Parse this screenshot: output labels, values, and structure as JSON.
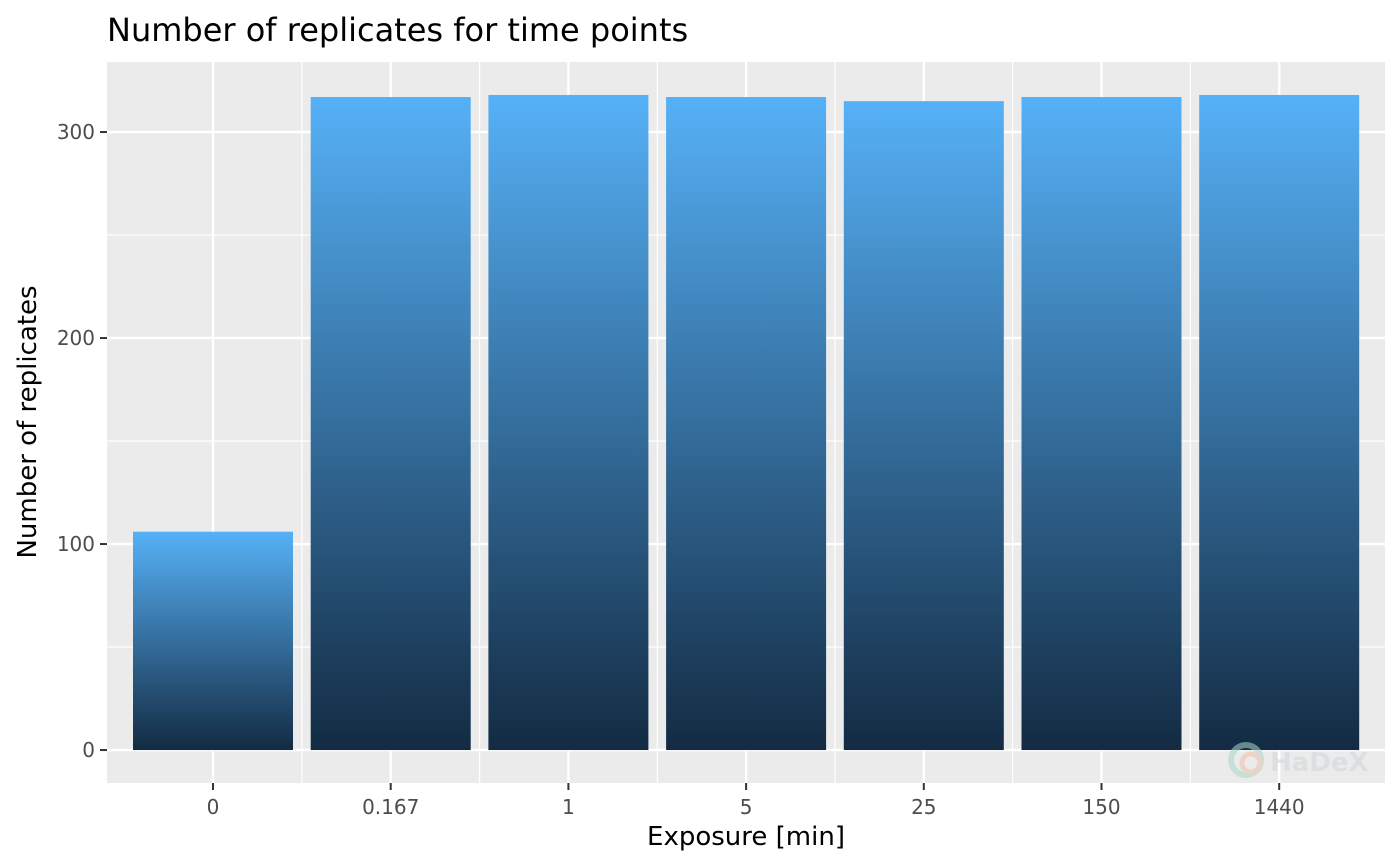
{
  "chart_data": {
    "type": "bar",
    "title": "Number of replicates for time points",
    "xlabel": "Exposure [min]",
    "ylabel": "Number of replicates",
    "categories": [
      "0",
      "0.167",
      "1",
      "5",
      "25",
      "150",
      "1440"
    ],
    "values": [
      106,
      317,
      318,
      317,
      315,
      317,
      318
    ],
    "ylim": [
      -16,
      334
    ],
    "yticks": [
      0,
      100,
      200,
      300
    ],
    "grid": true,
    "legend": "none",
    "colors": {
      "panel_background": "#ebebeb",
      "grid": "#ffffff",
      "bar_gradient_top": "#56b1f7",
      "bar_gradient_bottom": "#132b43",
      "tick_label": "#4d4d4d"
    }
  },
  "watermark": {
    "text": "HaDeX",
    "icon": "hadex-logo-icon"
  }
}
